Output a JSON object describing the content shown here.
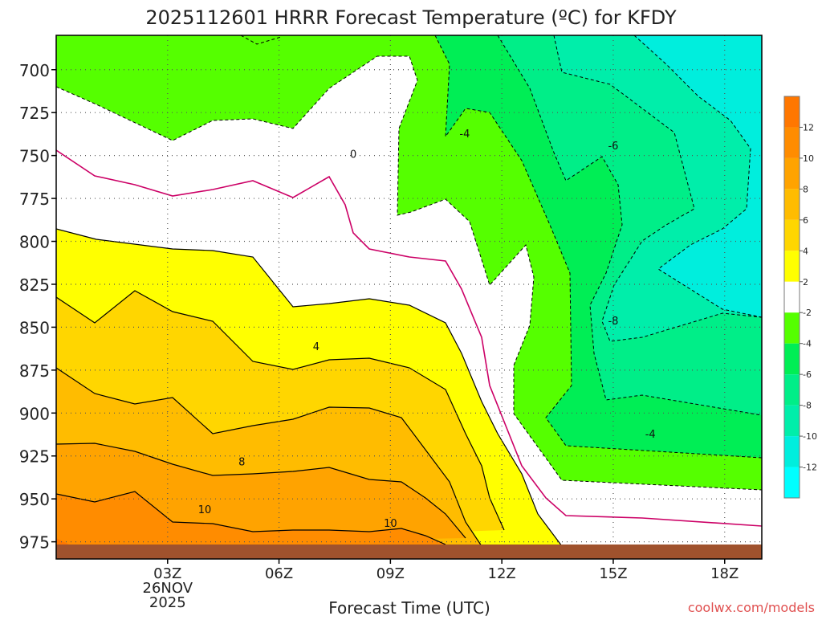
{
  "chart_data": {
    "type": "contour",
    "title": "2025112601 HRRR Forecast Temperature (ºC) for KFDY",
    "xlabel": "Forecast Time (UTC)",
    "credit": "coolwx.com/models",
    "x_ticks": [
      {
        "label": "03Z",
        "hour": 3,
        "sub": [
          "26NOV",
          "2025"
        ]
      },
      {
        "label": "06Z",
        "hour": 6
      },
      {
        "label": "09Z",
        "hour": 9
      },
      {
        "label": "12Z",
        "hour": 12
      },
      {
        "label": "15Z",
        "hour": 15
      },
      {
        "label": "18Z",
        "hour": 18
      }
    ],
    "xlim": [
      0,
      19
    ],
    "y_ticks": [
      "700",
      "725",
      "750",
      "775",
      "800",
      "825",
      "850",
      "875",
      "900",
      "925",
      "950",
      "975"
    ],
    "ylim": [
      680,
      985
    ],
    "y_unit": "hPa",
    "grid": true,
    "colorbar": {
      "labels": [
        "12",
        "10",
        "8",
        "6",
        "4",
        "2",
        "-2",
        "-4",
        "-6",
        "-8",
        "-10",
        "-12"
      ],
      "colors": [
        "#ff7700",
        "#ff8c00",
        "#ffa300",
        "#ffbc00",
        "#ffd600",
        "#ffff00",
        "#ffffff",
        "#55ff00",
        "#00ee55",
        "#00ee88",
        "#00eeaa",
        "#00eedd",
        "#00ffff"
      ]
    },
    "contour_labels": [
      {
        "text": "0",
        "hour": 8.0,
        "p": 750
      },
      {
        "text": "-4",
        "hour": 11.0,
        "p": 738
      },
      {
        "text": "-6",
        "hour": 15.0,
        "p": 745
      },
      {
        "text": "-8",
        "hour": 15.0,
        "p": 847
      },
      {
        "text": "4",
        "hour": 7.0,
        "p": 862
      },
      {
        "text": "-4",
        "hour": 16.0,
        "p": 913
      },
      {
        "text": "8",
        "hour": 5.0,
        "p": 929
      },
      {
        "text": "10",
        "hour": 4.0,
        "p": 957
      },
      {
        "text": "10",
        "hour": 9.0,
        "p": 965
      }
    ],
    "ground_color": "#a0522d"
  }
}
